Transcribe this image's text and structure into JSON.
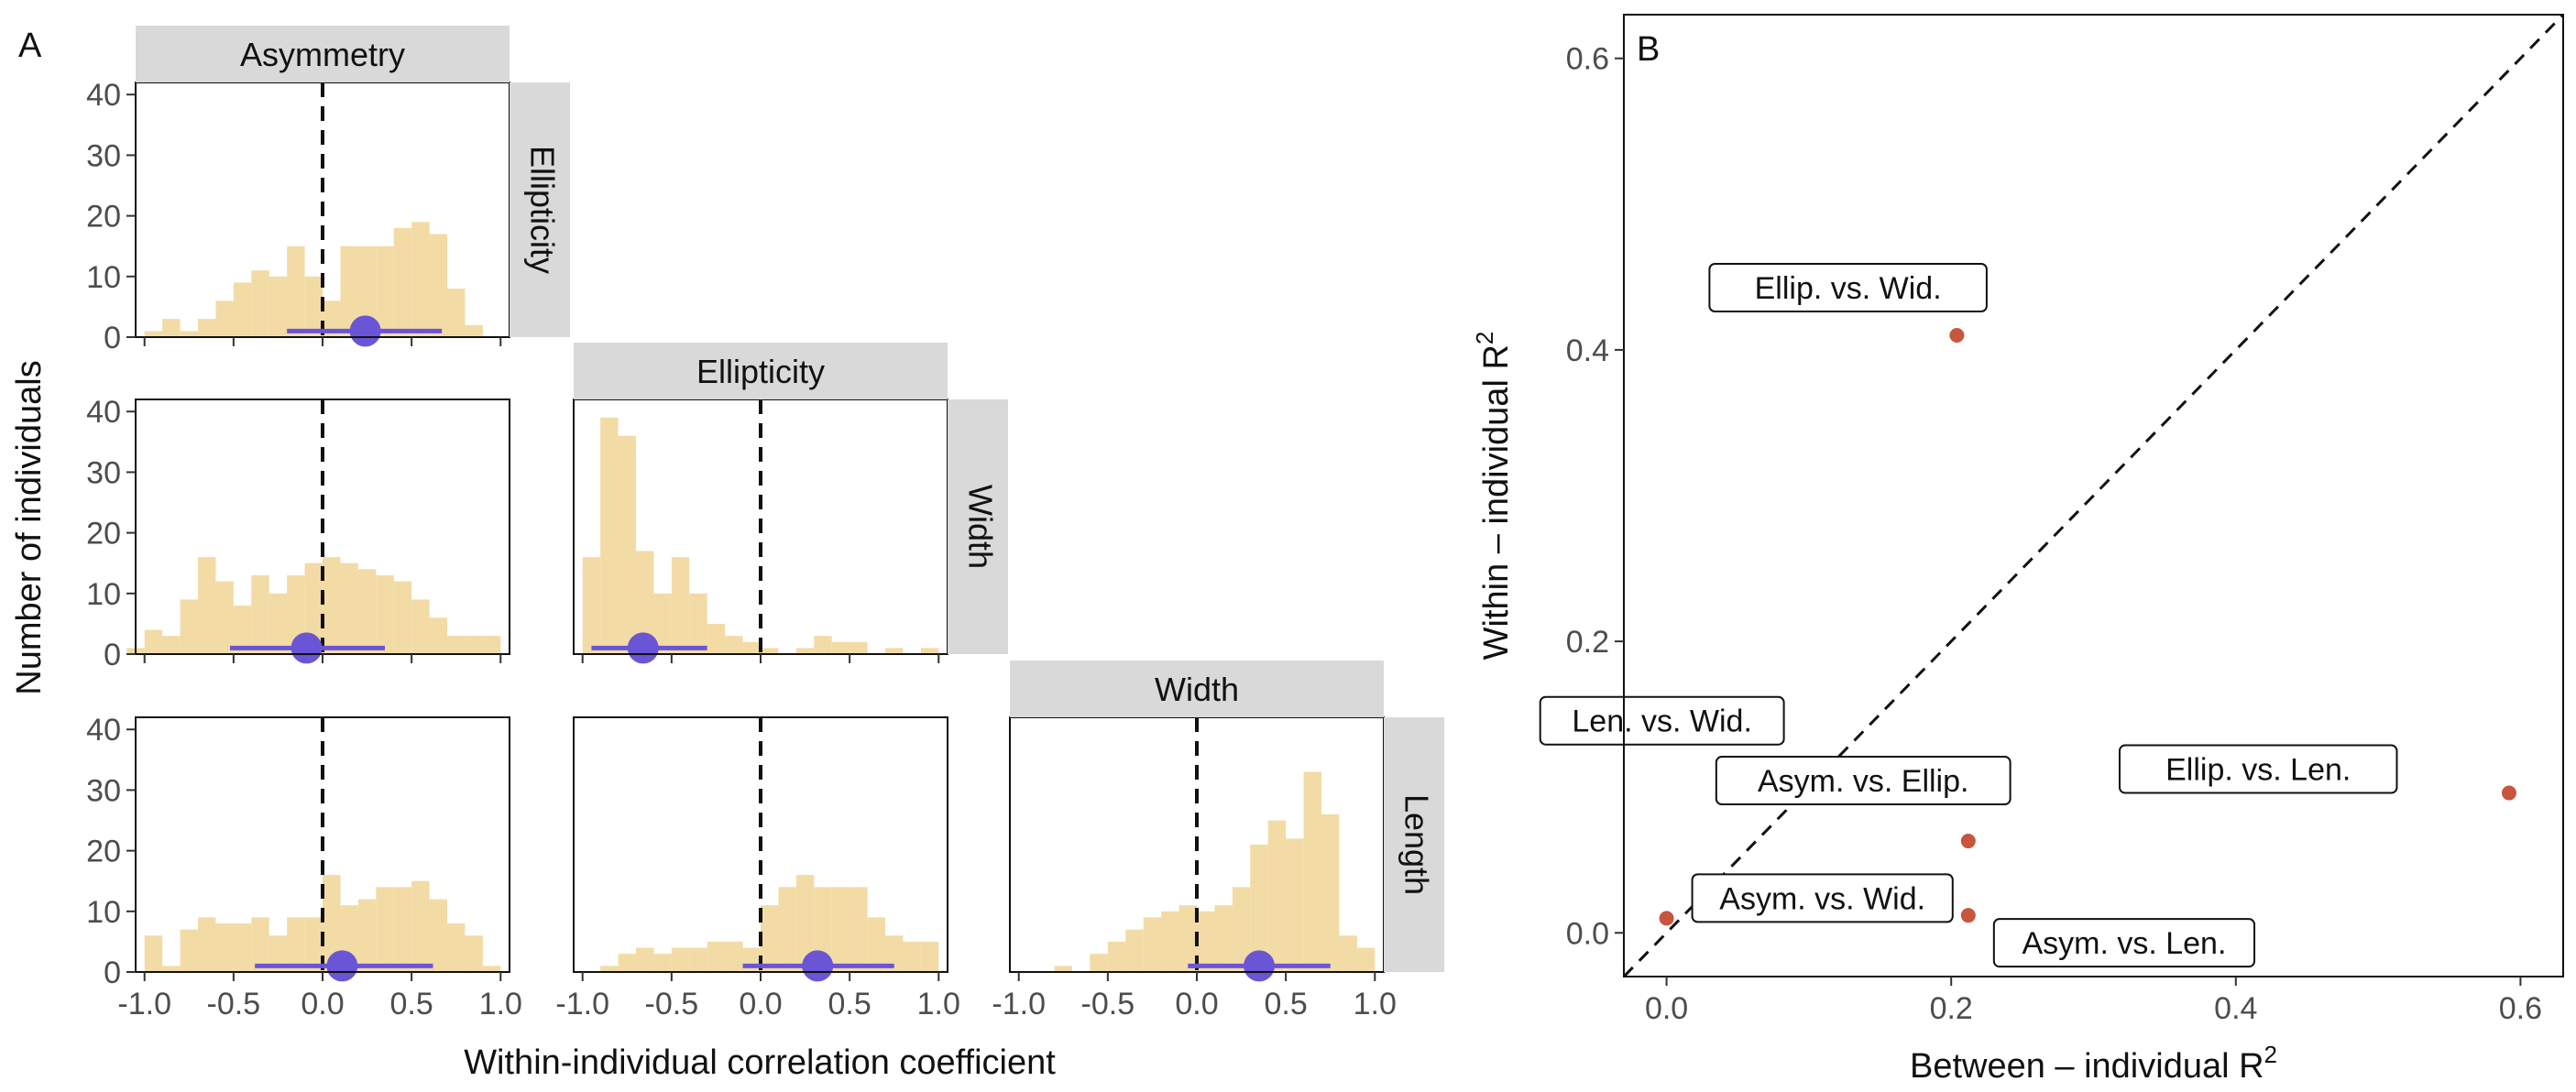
{
  "panel_a": {
    "label": "A",
    "xlabel": "Within-individual correlation coefficient",
    "ylabel": "Number of individuals",
    "x_ticks": [
      "-1.0",
      "-0.5",
      "0.0",
      "0.5",
      "1.0"
    ],
    "y_ticks": [
      "0",
      "10",
      "20",
      "30",
      "40"
    ],
    "column_strips": [
      "Asymmetry",
      "Ellipticity",
      "Width"
    ],
    "row_strips": [
      "Ellipticity",
      "Width",
      "Length"
    ],
    "colors": {
      "bar": "#f3dba6",
      "point": "#6a55d6",
      "strip": "#d9d9d9"
    }
  },
  "panel_b": {
    "label": "B",
    "xlabel_main": "Between – individual R",
    "ylabel_main": "Within – individual R",
    "superscript": "2",
    "x_ticks": [
      "0.0",
      "0.2",
      "0.4",
      "0.6"
    ],
    "y_ticks": [
      "0.0",
      "0.2",
      "0.4",
      "0.6"
    ],
    "colors": {
      "point": "#c8553d"
    }
  },
  "chart_data": [
    {
      "type": "bar",
      "panel": "A",
      "facet_grid": true,
      "bin_width": 0.1,
      "x_range": [
        -1.05,
        1.05
      ],
      "ylim": [
        0,
        42
      ],
      "reference_line_x": 0.0,
      "facets": [
        {
          "column": "Asymmetry",
          "row": "Ellipticity",
          "bin_centers": [
            -0.95,
            -0.85,
            -0.75,
            -0.65,
            -0.55,
            -0.45,
            -0.35,
            -0.25,
            -0.15,
            -0.05,
            0.05,
            0.15,
            0.25,
            0.35,
            0.45,
            0.55,
            0.65,
            0.75,
            0.85,
            0.95
          ],
          "counts": [
            1,
            3,
            1,
            3,
            6,
            9,
            11,
            10,
            15,
            10,
            6,
            15,
            15,
            15,
            18,
            19,
            17,
            8,
            2,
            0
          ],
          "mean": 0.24,
          "interval": [
            -0.2,
            0.67
          ]
        },
        {
          "column": "Asymmetry",
          "row": "Width",
          "bin_centers": [
            -1.05,
            -0.95,
            -0.85,
            -0.75,
            -0.65,
            -0.55,
            -0.45,
            -0.35,
            -0.25,
            -0.15,
            -0.05,
            0.05,
            0.15,
            0.25,
            0.35,
            0.45,
            0.55,
            0.65,
            0.75,
            0.85,
            0.95
          ],
          "counts": [
            1,
            4,
            3,
            9,
            16,
            12,
            8,
            13,
            10,
            13,
            15,
            16,
            15,
            14,
            13,
            12,
            9,
            6,
            3,
            3,
            3
          ],
          "mean": -0.09,
          "interval": [
            -0.52,
            0.35
          ]
        },
        {
          "column": "Ellipticity",
          "row": "Width",
          "bin_centers": [
            -0.95,
            -0.85,
            -0.75,
            -0.65,
            -0.55,
            -0.45,
            -0.35,
            -0.25,
            -0.15,
            -0.05,
            0.05,
            0.15,
            0.25,
            0.35,
            0.45,
            0.55,
            0.65,
            0.75,
            0.85,
            0.95
          ],
          "counts": [
            16,
            39,
            36,
            17,
            10,
            16,
            10,
            5,
            3,
            2,
            1,
            0,
            1,
            3,
            2,
            2,
            0,
            1,
            0,
            1
          ],
          "mean": -0.66,
          "interval": [
            -0.95,
            -0.3
          ]
        },
        {
          "column": "Asymmetry",
          "row": "Length",
          "bin_centers": [
            -0.95,
            -0.85,
            -0.75,
            -0.65,
            -0.55,
            -0.45,
            -0.35,
            -0.25,
            -0.15,
            -0.05,
            0.05,
            0.15,
            0.25,
            0.35,
            0.45,
            0.55,
            0.65,
            0.75,
            0.85,
            0.95
          ],
          "counts": [
            6,
            1,
            7,
            9,
            8,
            8,
            9,
            6,
            9,
            9,
            16,
            11,
            12,
            14,
            14,
            15,
            12,
            8,
            6,
            1
          ],
          "mean": 0.11,
          "interval": [
            -0.38,
            0.62
          ]
        },
        {
          "column": "Ellipticity",
          "row": "Length",
          "bin_centers": [
            -0.85,
            -0.75,
            -0.65,
            -0.55,
            -0.45,
            -0.35,
            -0.25,
            -0.15,
            -0.05,
            0.05,
            0.15,
            0.25,
            0.35,
            0.45,
            0.55,
            0.65,
            0.75,
            0.85,
            0.95
          ],
          "counts": [
            1,
            3,
            4,
            3,
            4,
            4,
            5,
            5,
            4,
            11,
            14,
            16,
            14,
            14,
            14,
            9,
            6,
            5,
            5
          ],
          "mean": 0.32,
          "interval": [
            -0.1,
            0.75
          ]
        },
        {
          "column": "Width",
          "row": "Length",
          "bin_centers": [
            -0.75,
            -0.55,
            -0.45,
            -0.35,
            -0.25,
            -0.15,
            -0.05,
            0.05,
            0.15,
            0.25,
            0.35,
            0.45,
            0.55,
            0.65,
            0.75,
            0.85,
            0.95
          ],
          "counts": [
            1,
            3,
            5,
            7,
            9,
            10,
            11,
            10,
            11,
            14,
            21,
            25,
            22,
            33,
            26,
            6,
            4
          ],
          "mean": 0.35,
          "interval": [
            -0.05,
            0.75
          ]
        }
      ]
    },
    {
      "type": "scatter",
      "panel": "B",
      "xlabel": "Between – individual R²",
      "ylabel": "Within – individual R²",
      "xlim": [
        -0.03,
        0.63
      ],
      "ylim": [
        -0.03,
        0.63
      ],
      "reference_line": "y = x",
      "points": [
        {
          "label": "Ellip. vs. Wid.",
          "x": 0.204,
          "y": 0.41
        },
        {
          "label": "Len. vs. Wid.",
          "x": 0.04,
          "y": 0.116
        },
        {
          "label": "Asym. vs. Ellip.",
          "x": 0.212,
          "y": 0.063
        },
        {
          "label": "Ellip. vs. Len.",
          "x": 0.592,
          "y": 0.096
        },
        {
          "label": "Asym. vs. Wid.",
          "x": 0.0,
          "y": 0.01
        },
        {
          "label": "Asym. vs. Len.",
          "x": 0.212,
          "y": 0.012
        }
      ]
    }
  ]
}
